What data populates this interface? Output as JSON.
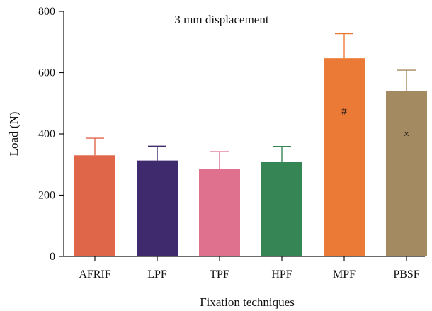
{
  "chart_data": {
    "type": "bar",
    "title": "3 mm displacement",
    "xlabel": "Fixation techniques",
    "ylabel": "Load (N)",
    "ylim": [
      0,
      800
    ],
    "yticks": [
      0,
      200,
      400,
      600,
      800
    ],
    "grid": false,
    "categories": [
      "AFRIF",
      "LPF",
      "TPF",
      "HPF",
      "MPF",
      "PBSF"
    ],
    "values": [
      330,
      313,
      285,
      308,
      647,
      540
    ],
    "errors": [
      56,
      47,
      57,
      51,
      80,
      68
    ],
    "colors": [
      "#E0664A",
      "#3F2A6E",
      "#DF708E",
      "#358555",
      "#EC7A37",
      "#A48A60"
    ],
    "annotations": [
      {
        "category": "MPF",
        "text": "#",
        "y": 475
      },
      {
        "category": "PBSF",
        "text": "×",
        "y": 400
      }
    ]
  }
}
